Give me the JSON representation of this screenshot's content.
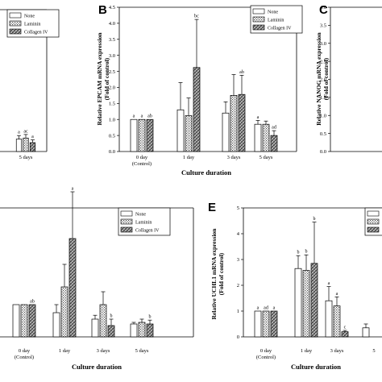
{
  "figure": {
    "background": "#ffffff",
    "fills": {
      "None": "#ffffff",
      "Laminin": "#cfcfcf",
      "Collagen IV": "#8c8c8c"
    }
  },
  "chart_data": [
    {
      "id": "A-top",
      "panel": "",
      "type": "bar",
      "categories": [
        "5 days"
      ],
      "series": [
        {
          "name": "None",
          "values": [
            0.35
          ],
          "errors": [
            0.1
          ],
          "sig": [
            "a"
          ]
        },
        {
          "name": "Laminin",
          "values": [
            0.38
          ],
          "errors": [
            0.1
          ],
          "sig": [
            "ac"
          ]
        },
        {
          "name": "Collagen IV",
          "values": [
            0.25
          ],
          "errors": [
            0.08
          ],
          "sig": [
            "a"
          ]
        }
      ],
      "xlabel": "",
      "ylabel": "",
      "ylim": [
        0,
        4.0
      ]
    },
    {
      "id": "B",
      "panel": "B",
      "type": "bar",
      "categories": [
        "0 day\n(Control)",
        "1 day",
        "3 days",
        "5 days"
      ],
      "series": [
        {
          "name": "None",
          "values": [
            1.0,
            1.3,
            1.2,
            0.85
          ],
          "errors": [
            0,
            0.85,
            0.35,
            0.12
          ],
          "sig": [
            "a",
            "",
            "",
            "a"
          ]
        },
        {
          "name": "Laminin",
          "values": [
            1.0,
            1.12,
            1.75,
            0.85
          ],
          "errors": [
            0,
            0.55,
            0.65,
            0.1
          ],
          "sig": [
            "a",
            "",
            "",
            ""
          ]
        },
        {
          "name": "Collagen IV",
          "values": [
            1.0,
            2.62,
            1.78,
            0.5
          ],
          "errors": [
            0,
            1.5,
            0.6,
            0.15
          ],
          "sig": [
            "ab",
            "bc",
            "ab",
            "ad"
          ]
        }
      ],
      "xlabel": "Culture duration",
      "ylabel": "Relative EPCAM mRNA expression\n(Fold of control)",
      "ylim": [
        0,
        4.5
      ],
      "yticks": [
        "0.0",
        "0.5",
        "1.0",
        "1.5",
        "2.0",
        "2.5",
        "3.0",
        "3.5",
        "4.0",
        "4.5"
      ]
    },
    {
      "id": "C",
      "panel": "C",
      "type": "bar",
      "categories": [],
      "series": [],
      "xlabel": "",
      "ylabel": "Relative NANOG mRNA expression\n(Fold of control)",
      "ylim": [
        0,
        4.0
      ],
      "yticks": [
        "0.0",
        "0.5",
        "1.0",
        "1.5",
        "2.0",
        "2.5",
        "3.0",
        "3.5",
        "4.0"
      ]
    },
    {
      "id": "D",
      "panel": "",
      "type": "bar",
      "categories": [
        "0 day\n(Control)",
        "1 day",
        "3 days",
        "5 days"
      ],
      "series": [
        {
          "name": "None",
          "values": [
            1.0,
            0.75,
            0.55,
            0.4
          ],
          "errors": [
            0,
            0.25,
            0.12,
            0.05
          ],
          "sig": [
            "",
            "",
            "",
            ""
          ]
        },
        {
          "name": "Laminin",
          "values": [
            1.0,
            1.55,
            1.0,
            0.45
          ],
          "errors": [
            0,
            0.7,
            0.4,
            0.1
          ],
          "sig": [
            "",
            "",
            "",
            ""
          ]
        },
        {
          "name": "Collagen IV",
          "values": [
            1.0,
            3.05,
            0.35,
            0.4
          ],
          "errors": [
            0,
            1.45,
            0.2,
            0.12
          ],
          "sig": [
            "ab",
            "a",
            "b",
            "b"
          ]
        }
      ],
      "xlabel": "Culture duration",
      "ylabel": "",
      "ylim": [
        0,
        4.0
      ]
    },
    {
      "id": "E",
      "panel": "E",
      "type": "bar",
      "categories": [
        "0 day\n(Control)",
        "1 day",
        "3 days",
        "5"
      ],
      "series": [
        {
          "name": "None",
          "values": [
            1.0,
            2.65,
            1.4,
            0.35
          ],
          "errors": [
            0,
            0.5,
            0.55,
            0.15
          ],
          "sig": [
            "a",
            "b",
            "a",
            ""
          ]
        },
        {
          "name": "Laminin",
          "values": [
            1.0,
            2.58,
            1.2,
            0
          ],
          "errors": [
            0,
            0.6,
            0.35,
            0
          ],
          "sig": [
            "ad",
            "b",
            "a",
            ""
          ]
        },
        {
          "name": "Collagen IV",
          "values": [
            1.0,
            2.85,
            0.2,
            0
          ],
          "errors": [
            0,
            1.6,
            0.05,
            0
          ],
          "sig": [
            "a",
            "b",
            "c",
            ""
          ]
        }
      ],
      "xlabel": "Culture duration",
      "ylabel": "Relative UCHL1 mRNA expression\n(Fold of control)",
      "ylim": [
        0,
        5
      ],
      "yticks": [
        "0",
        "1",
        "2",
        "3",
        "4",
        "5"
      ]
    }
  ]
}
